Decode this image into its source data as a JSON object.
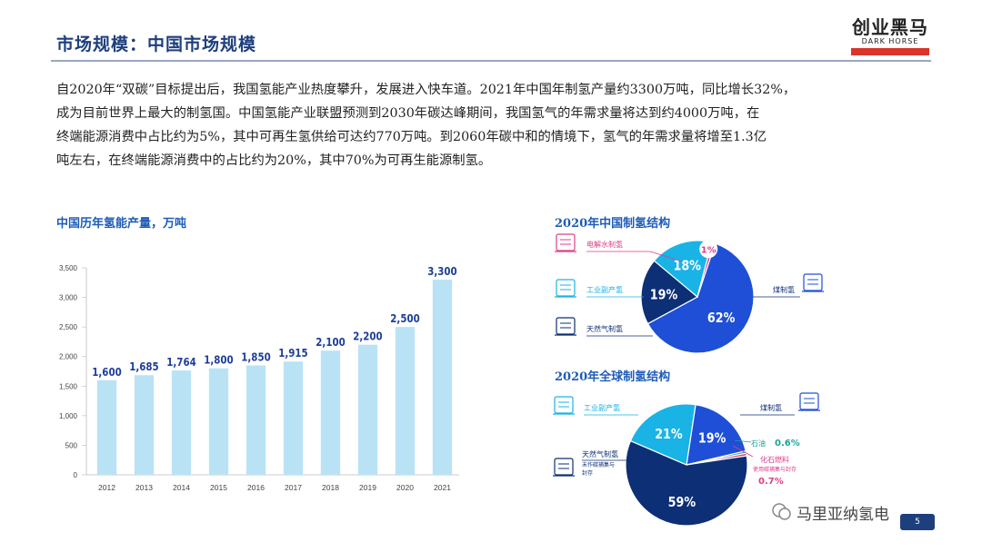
{
  "header": {
    "title": "市场规模：中国市场规模",
    "logo_cn": "创业黑马",
    "logo_en": "DARK HORSE"
  },
  "intro": {
    "lines": [
      "自2020年“双碳”目标提出后，我国氢能产业热度攀升，发展进入快车道。2021年中国年制氢产量约3300万吨，同比增长32%，",
      "成为目前世界上最大的制氢国。中国氢能产业联盟预测到2030年碳达峰期间，我国氢气的年需求量将达到约4000万吨，在",
      "终端能源消费中占比约为5%，其中可再生氢供给可达约770万吨。到2060年碳中和的情境下，氢气的年需求量将增至1.3亿",
      "吨左右，在终端能源消费中的占比约为20%，其中70%为可再生能源制氢。"
    ]
  },
  "chart_data": [
    {
      "type": "bar",
      "title": "中国历年氢能产量，万吨",
      "categories": [
        "2012",
        "2013",
        "2014",
        "2015",
        "2016",
        "2017",
        "2018",
        "2019",
        "2020",
        "2021"
      ],
      "values": [
        1600,
        1685,
        1764,
        1800,
        1850,
        1915,
        2100,
        2200,
        2500,
        3300
      ],
      "value_labels": [
        "1,600",
        "1,685",
        "1,764",
        "1,800",
        "1,850",
        "1,915",
        "2,100",
        "2,200",
        "2,500",
        "3,300"
      ],
      "yticks": [
        "0",
        "500",
        "1,000",
        "1,500",
        "2,000",
        "2,500",
        "3,000",
        "3,500"
      ],
      "ylim": [
        0,
        3500
      ],
      "grid": false,
      "colors": {
        "bar": "#b9e3f5",
        "label": "#1e3f9a"
      }
    },
    {
      "type": "pie",
      "title": "2020年中国制氢结构",
      "slices": [
        {
          "label": "煤制氢",
          "value": 62,
          "text": "62%",
          "color": "#1e4fd6"
        },
        {
          "label": "天然气制氢",
          "value": 19,
          "text": "19%",
          "color": "#0d2f75"
        },
        {
          "label": "工业副产氢",
          "value": 18,
          "text": "18%",
          "color": "#19b3e6"
        },
        {
          "label": "电解水制氢",
          "value": 1,
          "text": "1%",
          "color": "#e03c8a"
        }
      ]
    },
    {
      "type": "pie",
      "title": "2020年全球制氢结构",
      "slices": [
        {
          "label": "煤制氢",
          "value": 19,
          "text": "19%",
          "color": "#1e4fd6"
        },
        {
          "label": "石油",
          "value": 0.6,
          "text": "0.6%",
          "color": "#1aa39a"
        },
        {
          "label": "化石燃料",
          "sublabel": "使用碳捕集与封存",
          "value": 0.7,
          "text": "0.7%",
          "color": "#e03c8a"
        },
        {
          "label": "天然气制氢",
          "sublabel": "未作碳捕集与封存",
          "value": 59,
          "text": "59%",
          "color": "#0d2f75"
        },
        {
          "label": "工业副产氢",
          "value": 21,
          "text": "21%",
          "color": "#19b3e6"
        }
      ]
    }
  ],
  "watermark": "马里亚纳氢电",
  "page_number": "5"
}
